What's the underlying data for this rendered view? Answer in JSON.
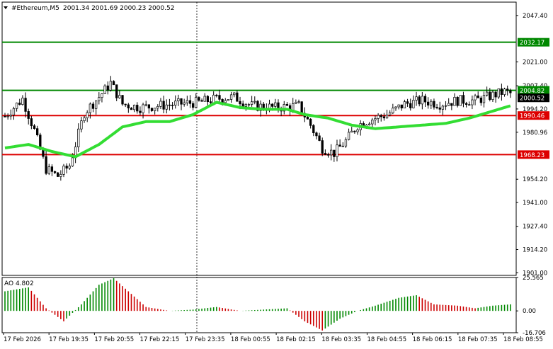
{
  "header": {
    "title": "#Ethereum,M5",
    "ohlc": "2001.34 2001.69 2000.23 2000.52"
  },
  "colors": {
    "background": "#ffffff",
    "axis": "#000000",
    "candle_bull": "#ffffff",
    "candle_bear": "#000000",
    "ma_line": "#33dd33",
    "resistance": "#008800",
    "support": "#dd0000",
    "ao_up": "#008800",
    "ao_down": "#cc0000",
    "price_tag": "#000000"
  },
  "chart_data": [
    {
      "type": "candlestick",
      "symbol": "#Ethereum,M5",
      "ylim": [
        1899.5,
        2055
      ],
      "y_ticks": [
        2047.4,
        2032.17,
        2021.0,
        2007.4,
        2004.82,
        2000.52,
        1994.2,
        1990.46,
        1980.96,
        1968.23,
        1954.2,
        1941.0,
        1927.4,
        1914.2,
        1901.0
      ],
      "y_tick_labels": [
        "2047.40",
        "2021.00",
        "2007.40",
        "1994.20",
        "1980.96",
        "1954.20",
        "1941.00",
        "1927.40",
        "1914.20",
        "1901.00"
      ],
      "x_tick_labels": [
        "17 Feb 2026",
        "17 Feb 19:35",
        "17 Feb 20:55",
        "17 Feb 22:15",
        "17 Feb 23:35",
        "18 Feb 00:55",
        "18 Feb 02:15",
        "18 Feb 03:35",
        "18 Feb 04:55",
        "18 Feb 06:15",
        "18 Feb 07:35",
        "18 Feb 08:55"
      ],
      "levels": [
        {
          "label": "2032.17",
          "value": 2032.17,
          "kind": "resistance"
        },
        {
          "label": "2004.82",
          "value": 2004.82,
          "kind": "resistance"
        },
        {
          "label": "1990.46",
          "value": 1990.46,
          "kind": "support"
        },
        {
          "label": "1968.23",
          "value": 1968.23,
          "kind": "support"
        }
      ],
      "current_price": {
        "label": "2000.52",
        "value": 2000.52
      },
      "close_anchors": [
        [
          0,
          1990
        ],
        [
          6,
          2000
        ],
        [
          10,
          1982
        ],
        [
          14,
          1960
        ],
        [
          18,
          1956
        ],
        [
          22,
          1962
        ],
        [
          27,
          1992
        ],
        [
          32,
          2001
        ],
        [
          36,
          2009
        ],
        [
          40,
          1997
        ],
        [
          46,
          1995
        ],
        [
          52,
          1996
        ],
        [
          58,
          1997
        ],
        [
          66,
          1998
        ],
        [
          72,
          2000
        ],
        [
          78,
          2001
        ],
        [
          84,
          1996
        ],
        [
          92,
          1995
        ],
        [
          100,
          1996
        ],
        [
          104,
          1985
        ],
        [
          108,
          1972
        ],
        [
          112,
          1969
        ],
        [
          116,
          1976
        ],
        [
          120,
          1985
        ],
        [
          124,
          1988
        ],
        [
          130,
          1991
        ],
        [
          136,
          1997
        ],
        [
          142,
          1999
        ],
        [
          148,
          1997
        ],
        [
          154,
          1999
        ],
        [
          160,
          1999
        ],
        [
          166,
          2002
        ],
        [
          170,
          2004
        ],
        [
          172,
          2003
        ]
      ],
      "ma_anchors": [
        [
          0,
          1972
        ],
        [
          8,
          1974
        ],
        [
          16,
          1970
        ],
        [
          24,
          1967
        ],
        [
          32,
          1974
        ],
        [
          40,
          1984
        ],
        [
          48,
          1987
        ],
        [
          56,
          1987
        ],
        [
          64,
          1991
        ],
        [
          72,
          1998
        ],
        [
          80,
          1995
        ],
        [
          88,
          1994
        ],
        [
          96,
          1994
        ],
        [
          102,
          1991
        ],
        [
          110,
          1989
        ],
        [
          118,
          1985
        ],
        [
          126,
          1983
        ],
        [
          134,
          1984
        ],
        [
          142,
          1985
        ],
        [
          150,
          1986
        ],
        [
          158,
          1989
        ],
        [
          166,
          1993
        ],
        [
          172,
          1996
        ]
      ]
    },
    {
      "type": "bar",
      "name": "AO 4.802",
      "ylim": [
        -16.706,
        25.565
      ],
      "y_tick_labels": [
        "25.565",
        "0.00",
        "-16.706"
      ],
      "anchors": [
        [
          0,
          15
        ],
        [
          8,
          18
        ],
        [
          14,
          2
        ],
        [
          20,
          -8
        ],
        [
          26,
          5
        ],
        [
          32,
          20
        ],
        [
          37,
          25
        ],
        [
          42,
          15
        ],
        [
          48,
          3
        ],
        [
          56,
          0
        ],
        [
          64,
          1
        ],
        [
          72,
          3
        ],
        [
          80,
          0
        ],
        [
          88,
          1
        ],
        [
          96,
          2
        ],
        [
          102,
          -8
        ],
        [
          108,
          -15
        ],
        [
          114,
          -6
        ],
        [
          120,
          0
        ],
        [
          126,
          4
        ],
        [
          134,
          10
        ],
        [
          140,
          12
        ],
        [
          146,
          5
        ],
        [
          154,
          4
        ],
        [
          160,
          2
        ],
        [
          166,
          4
        ],
        [
          172,
          5
        ]
      ]
    }
  ]
}
